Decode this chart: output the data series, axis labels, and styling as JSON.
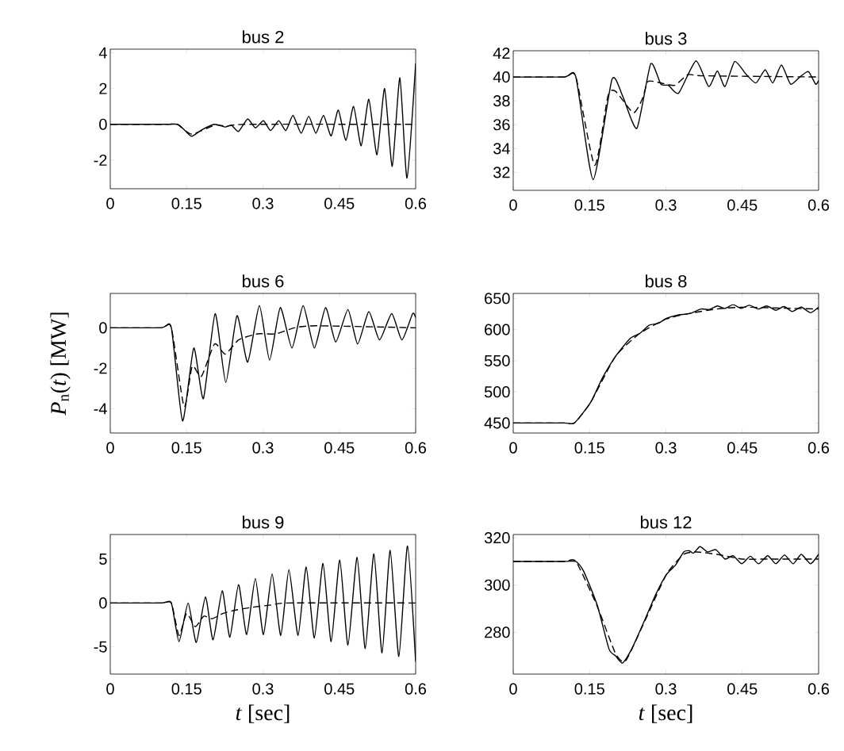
{
  "chart_data": [
    {
      "type": "line",
      "title": "bus 2",
      "xlim": [
        0,
        0.6
      ],
      "ylim": [
        -3.6,
        4.2
      ],
      "xticks": [
        0,
        0.15,
        0.3,
        0.45,
        0.6
      ],
      "yticks": [
        -2,
        0,
        2,
        4
      ],
      "series": [
        {
          "color": "#000000",
          "line_style": "solid",
          "x": [
            0,
            0.11,
            0.132,
            0.145,
            0.16,
            0.18,
            0.205,
            0.226,
            0.238,
            0.252,
            0.27,
            0.285,
            0.301,
            0.315,
            0.331,
            0.345,
            0.359,
            0.375,
            0.39,
            0.404,
            0.419,
            0.434,
            0.448,
            0.463,
            0.478,
            0.493,
            0.508,
            0.524,
            0.539,
            0.554,
            0.569,
            0.583,
            0.6
          ],
          "values": [
            0,
            0,
            0,
            -0.3,
            -0.67,
            -0.3,
            0,
            -0.15,
            -0.05,
            -0.4,
            0.3,
            -0.2,
            0.2,
            -0.35,
            0.2,
            -0.35,
            0.5,
            -0.5,
            0.45,
            -0.5,
            0.5,
            -0.65,
            0.8,
            -0.9,
            1.0,
            -1.2,
            1.4,
            -1.7,
            2.0,
            -2.35,
            2.6,
            -3.0,
            3.4
          ]
        },
        {
          "color": "#000000",
          "line_style": "dashed",
          "x": [
            0,
            0.11,
            0.132,
            0.16,
            0.205,
            0.23,
            0.27,
            0.6
          ],
          "values": [
            0,
            0,
            0,
            -0.55,
            -0.05,
            -0.1,
            0,
            0
          ]
        }
      ]
    },
    {
      "type": "line",
      "title": "bus 3",
      "xlim": [
        0,
        0.6
      ],
      "ylim": [
        30.5,
        42.2
      ],
      "xticks": [
        0,
        0.15,
        0.3,
        0.45,
        0.6
      ],
      "yticks": [
        32,
        34,
        36,
        38,
        40,
        42
      ],
      "series": [
        {
          "color": "#000000",
          "line_style": "solid",
          "x": [
            0,
            0.1,
            0.123,
            0.157,
            0.194,
            0.215,
            0.243,
            0.27,
            0.29,
            0.305,
            0.325,
            0.359,
            0.384,
            0.401,
            0.416,
            0.435,
            0.458,
            0.477,
            0.495,
            0.51,
            0.527,
            0.545,
            0.563,
            0.58,
            0.594,
            0.6
          ],
          "values": [
            40,
            40,
            40,
            31.4,
            39.8,
            38.4,
            35.7,
            41.1,
            39.4,
            39.3,
            38.65,
            41.35,
            39.2,
            40.5,
            39.2,
            41.3,
            40.2,
            39.5,
            40.6,
            39.5,
            41.0,
            39.4,
            40.0,
            40.45,
            39.4,
            39.7
          ]
        },
        {
          "color": "#000000",
          "line_style": "dashed",
          "x": [
            0,
            0.1,
            0.123,
            0.16,
            0.186,
            0.201,
            0.236,
            0.254,
            0.264,
            0.28,
            0.317,
            0.343,
            0.374,
            0.6
          ],
          "values": [
            40,
            40,
            40,
            32.6,
            38.4,
            38.8,
            37.0,
            38.2,
            39.6,
            39.6,
            39.3,
            40.2,
            40.1,
            40
          ]
        }
      ]
    },
    {
      "type": "line",
      "title": "bus 6",
      "ylabel": "*P*$_{n}$(*t*) [MW]",
      "xlim": [
        0,
        0.6
      ],
      "ylim": [
        -5.2,
        1.7
      ],
      "xticks": [
        0,
        0.15,
        0.3,
        0.45,
        0.6
      ],
      "yticks": [
        -4,
        -2,
        0
      ],
      "series": [
        {
          "color": "#000000",
          "line_style": "solid",
          "x": [
            0,
            0.1,
            0.12,
            0.142,
            0.164,
            0.183,
            0.206,
            0.227,
            0.249,
            0.27,
            0.293,
            0.313,
            0.334,
            0.357,
            0.379,
            0.401,
            0.423,
            0.443,
            0.467,
            0.486,
            0.508,
            0.529,
            0.553,
            0.573,
            0.594,
            0.6
          ],
          "values": [
            0,
            0,
            0,
            -4.6,
            -1.0,
            -3.5,
            0.7,
            -2.7,
            0.6,
            -1.7,
            1.1,
            -1.6,
            1.0,
            -1.0,
            1.1,
            -1.0,
            1.0,
            -0.7,
            0.9,
            -0.8,
            0.8,
            -0.6,
            0.7,
            -0.6,
            0.7,
            0.5
          ]
        },
        {
          "color": "#000000",
          "line_style": "dashed",
          "x": [
            0,
            0.1,
            0.12,
            0.145,
            0.161,
            0.179,
            0.205,
            0.226,
            0.252,
            0.289,
            0.325,
            0.362,
            0.404,
            0.6
          ],
          "values": [
            0,
            0,
            0,
            -3.9,
            -1.9,
            -2.4,
            -0.8,
            -1.3,
            -0.6,
            -0.3,
            -0.3,
            0,
            0.1,
            0
          ]
        }
      ]
    },
    {
      "type": "line",
      "title": "bus 8",
      "xlim": [
        0,
        0.6
      ],
      "ylim": [
        434,
        658
      ],
      "xticks": [
        0,
        0.15,
        0.3,
        0.45,
        0.6
      ],
      "yticks": [
        450,
        500,
        550,
        600,
        650
      ],
      "series": [
        {
          "color": "#000000",
          "line_style": "solid",
          "x": [
            0,
            0.1,
            0.12,
            0.152,
            0.175,
            0.201,
            0.23,
            0.249,
            0.267,
            0.285,
            0.301,
            0.322,
            0.348,
            0.369,
            0.385,
            0.401,
            0.416,
            0.432,
            0.448,
            0.464,
            0.482,
            0.498,
            0.516,
            0.532,
            0.548,
            0.566,
            0.584,
            0.6
          ],
          "values": [
            450,
            450,
            450,
            483,
            522,
            557,
            586,
            594,
            607,
            610,
            618,
            623,
            626,
            633,
            632,
            638,
            634,
            640,
            634,
            639,
            633,
            638,
            631,
            637,
            629,
            636,
            627,
            636
          ]
        },
        {
          "color": "#000000",
          "line_style": "dashed",
          "x": [
            0,
            0.1,
            0.12,
            0.152,
            0.201,
            0.249,
            0.301,
            0.348,
            0.4,
            0.45,
            0.5,
            0.55,
            0.6
          ],
          "values": [
            450,
            450,
            450,
            483,
            557,
            594,
            617,
            626,
            633,
            636,
            635,
            634,
            633
          ]
        }
      ]
    },
    {
      "type": "line",
      "title": "bus 9",
      "xlabel": "*t* [sec]",
      "xlim": [
        0,
        0.6
      ],
      "ylim": [
        -8.1,
        7.8
      ],
      "xticks": [
        0,
        0.15,
        0.3,
        0.45,
        0.6
      ],
      "yticks": [
        -5,
        0,
        5
      ],
      "series": [
        {
          "color": "#000000",
          "line_style": "solid",
          "x": [
            0,
            0.1,
            0.12,
            0.135,
            0.153,
            0.169,
            0.187,
            0.202,
            0.22,
            0.235,
            0.252,
            0.268,
            0.285,
            0.301,
            0.318,
            0.335,
            0.351,
            0.369,
            0.385,
            0.401,
            0.418,
            0.434,
            0.451,
            0.467,
            0.485,
            0.501,
            0.518,
            0.534,
            0.55,
            0.567,
            0.584,
            0.6
          ],
          "values": [
            0,
            0,
            0,
            -4.4,
            0,
            -4.5,
            0.7,
            -4.2,
            1.4,
            -3.9,
            2.1,
            -3.6,
            2.8,
            -3.6,
            3.3,
            -3.7,
            3.8,
            -3.7,
            4.1,
            -4.0,
            4.5,
            -4.4,
            4.9,
            -4.8,
            5.2,
            -5.2,
            5.6,
            -5.7,
            6.0,
            -6.1,
            6.5,
            -6.7
          ]
        },
        {
          "color": "#000000",
          "line_style": "dashed",
          "x": [
            0,
            0.1,
            0.12,
            0.135,
            0.15,
            0.167,
            0.184,
            0.2,
            0.221,
            0.247,
            0.278,
            0.32,
            0.351,
            0.6
          ],
          "values": [
            0,
            0,
            0,
            -3.7,
            -1.2,
            -2.7,
            -1.5,
            -1.8,
            -1.2,
            -0.8,
            -0.5,
            -0.2,
            0,
            0
          ]
        }
      ]
    },
    {
      "type": "line",
      "title": "bus 12",
      "xlabel": "*t* [sec]",
      "xlim": [
        0,
        0.6
      ],
      "ylim": [
        262.3,
        321.4
      ],
      "xticks": [
        0,
        0.15,
        0.3,
        0.45,
        0.6
      ],
      "yticks": [
        280,
        300,
        320
      ],
      "series": [
        {
          "color": "#000000",
          "line_style": "solid",
          "x": [
            0,
            0.1,
            0.123,
            0.138,
            0.165,
            0.188,
            0.201,
            0.215,
            0.233,
            0.259,
            0.28,
            0.301,
            0.319,
            0.335,
            0.346,
            0.354,
            0.367,
            0.382,
            0.398,
            0.416,
            0.432,
            0.449,
            0.466,
            0.482,
            0.5,
            0.516,
            0.533,
            0.55,
            0.566,
            0.584,
            0.6
          ],
          "values": [
            310,
            310,
            310,
            306,
            291.5,
            273,
            270,
            267,
            273,
            285.5,
            296,
            304.5,
            308.5,
            314,
            314.5,
            313.5,
            316.3,
            314,
            315,
            311,
            312.4,
            309,
            312.2,
            309,
            312.4,
            309,
            312.7,
            309,
            313,
            309,
            313
          ]
        },
        {
          "color": "#000000",
          "line_style": "dashed",
          "x": [
            0,
            0.1,
            0.123,
            0.165,
            0.201,
            0.221,
            0.259,
            0.301,
            0.335,
            0.36,
            0.4,
            0.45,
            0.5,
            0.6
          ],
          "values": [
            310,
            310,
            310,
            291,
            271,
            268,
            285,
            304.5,
            313,
            314,
            313,
            311,
            311,
            311
          ]
        }
      ]
    }
  ]
}
